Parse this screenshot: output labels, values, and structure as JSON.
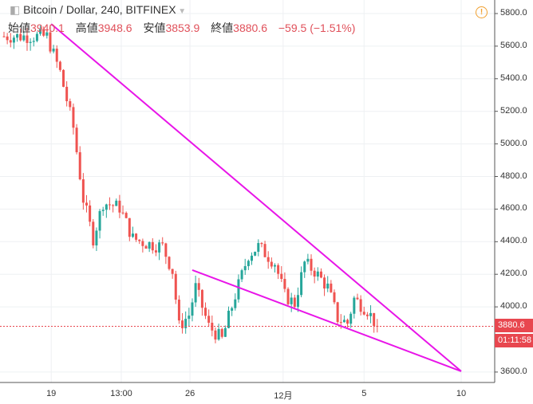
{
  "header": {
    "symbol": "Bitcoin / Dollar, 240, BITFINEX",
    "open_label": "始値",
    "open": "3940.1",
    "high_label": "高値",
    "high": "3948.6",
    "low_label": "安値",
    "low": "3853.9",
    "close_label": "終値",
    "close": "3880.6",
    "change": "−59.5 (−1.51%)"
  },
  "price_label": "3880.6",
  "countdown": "01:11:58",
  "chart_data": {
    "type": "candlestick",
    "title": "Bitcoin / Dollar, 240, BITFINEX",
    "ylim": [
      3600,
      5800
    ],
    "y_ticks": [
      "5800.0",
      "5600.0",
      "5400.0",
      "5200.0",
      "5000.0",
      "4800.0",
      "4600.0",
      "4400.0",
      "4200.0",
      "4000.0",
      "3600.0"
    ],
    "x_ticks": [
      {
        "label": "19",
        "candle": 14.3
      },
      {
        "label": "13:00",
        "candle": 35.5
      },
      {
        "label": "26",
        "candle": 56.3
      },
      {
        "label": "12月",
        "candle": 84.5
      },
      {
        "label": "5",
        "candle": 109
      },
      {
        "label": "10",
        "candle": 138.4
      }
    ],
    "price_path": [
      [
        0,
        5660
      ],
      [
        13,
        5660
      ],
      [
        17,
        5440
      ],
      [
        21,
        5100
      ],
      [
        24,
        4660
      ],
      [
        27,
        4420
      ],
      [
        30,
        4640
      ],
      [
        35,
        4610
      ],
      [
        39,
        4420
      ],
      [
        43,
        4390
      ],
      [
        48,
        4370
      ],
      [
        51,
        4220
      ],
      [
        53,
        3880
      ],
      [
        56,
        3950
      ],
      [
        58,
        4120
      ],
      [
        62,
        3880
      ],
      [
        66,
        3800
      ],
      [
        70,
        4070
      ],
      [
        74,
        4320
      ],
      [
        77,
        4370
      ],
      [
        82,
        4270
      ],
      [
        85,
        4070
      ],
      [
        88,
        4020
      ],
      [
        91,
        4270
      ],
      [
        94,
        4220
      ],
      [
        98,
        4120
      ],
      [
        101,
        3930
      ],
      [
        104,
        3900
      ],
      [
        106,
        4050
      ],
      [
        110,
        3980
      ],
      [
        113,
        3880
      ]
    ],
    "last_price": 3880.6,
    "trend_lines": [
      {
        "from": [
          14.3,
          5736
        ],
        "to": [
          138.4,
          3605
        ],
        "color": "#e815e8"
      },
      {
        "from": [
          57,
          4226
        ],
        "to": [
          138.4,
          3605
        ],
        "color": "#e815e8"
      }
    ],
    "colors": {
      "up": "#26a69a",
      "down": "#ef5350"
    }
  }
}
